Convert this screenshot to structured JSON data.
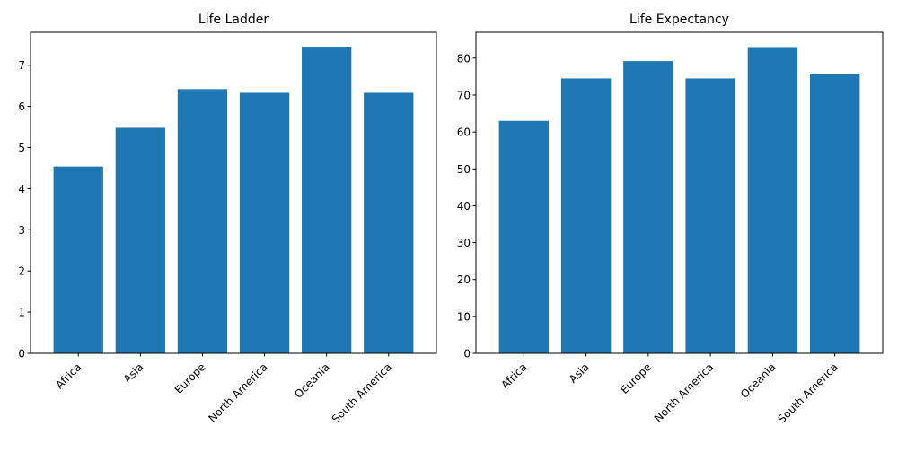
{
  "colors": {
    "bar": "#1f77b4",
    "axis": "#000000",
    "background": "#ffffff"
  },
  "chart_data": [
    {
      "type": "bar",
      "title": "Life Ladder",
      "xlabel": "",
      "ylabel": "",
      "categories": [
        "Africa",
        "Asia",
        "Europe",
        "North America",
        "Oceania",
        "South America"
      ],
      "values": [
        4.54,
        5.48,
        6.42,
        6.33,
        7.45,
        6.33
      ],
      "ylim": [
        0,
        7.8
      ],
      "yticks": [
        0,
        1,
        2,
        3,
        4,
        5,
        6,
        7
      ],
      "xtick_rotation": 45,
      "grid": false,
      "legend": "none"
    },
    {
      "type": "bar",
      "title": "Life Expectancy",
      "xlabel": "",
      "ylabel": "",
      "categories": [
        "Africa",
        "Asia",
        "Europe",
        "North America",
        "Oceania",
        "South America"
      ],
      "values": [
        63.0,
        74.5,
        79.2,
        74.5,
        83.0,
        75.8
      ],
      "ylim": [
        0,
        87
      ],
      "yticks": [
        0,
        10,
        20,
        30,
        40,
        50,
        60,
        70,
        80
      ],
      "xtick_rotation": 45,
      "grid": false,
      "legend": "none"
    }
  ]
}
